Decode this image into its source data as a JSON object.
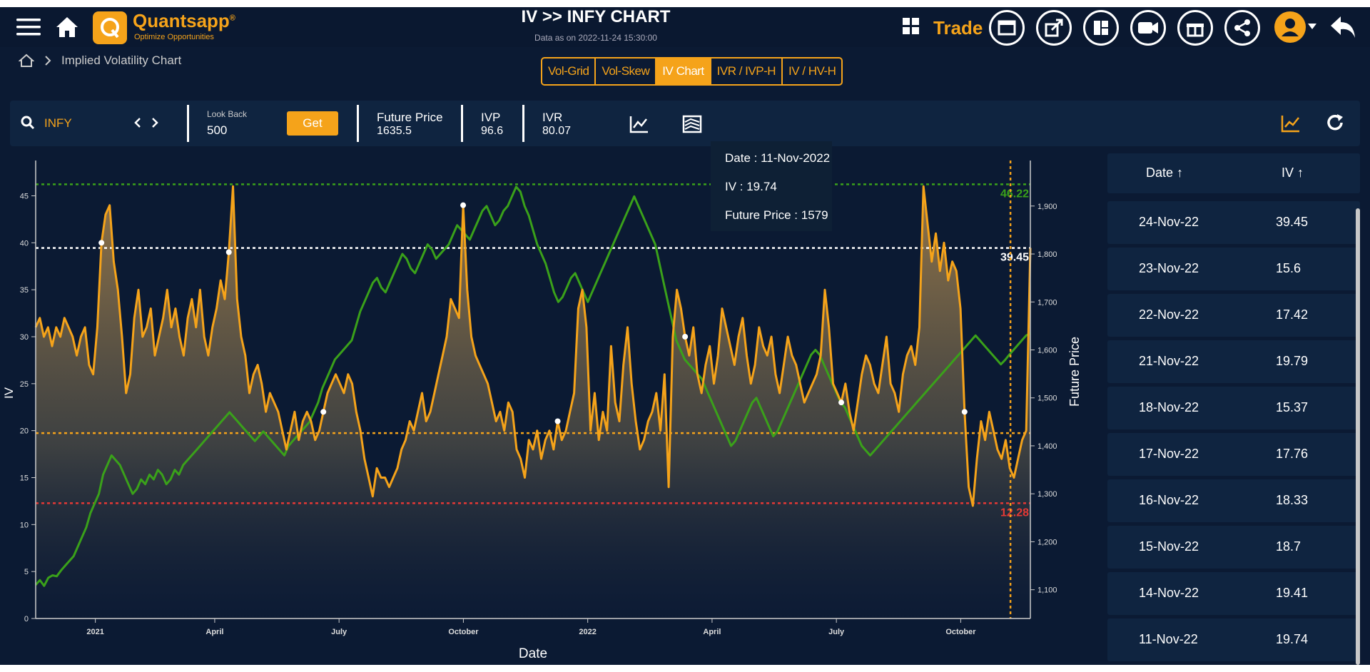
{
  "header": {
    "brand": "Quantsapp",
    "brand_sup": "®",
    "tagline": "Optimize Opportunities",
    "title": "IV >> INFY CHART",
    "as_of": "Data as on 2022-11-24 15:30:00",
    "trade_label": "Trade"
  },
  "breadcrumb": {
    "current": "Implied Volatility Chart"
  },
  "tabs": [
    {
      "label": "Vol-Grid",
      "active": false
    },
    {
      "label": "Vol-Skew",
      "active": false
    },
    {
      "label": "IV Chart",
      "active": true
    },
    {
      "label": "IVR / IVP-H",
      "active": false
    },
    {
      "label": "IV / HV-H",
      "active": false
    }
  ],
  "toolbar": {
    "symbol": "INFY",
    "lookback_label": "Look Back",
    "lookback_value": "500",
    "get_label": "Get",
    "future_label": "Future Price",
    "future_value": "1635.5",
    "ivp_label": "IVP",
    "ivp_value": "96.6",
    "ivr_label": "IVR",
    "ivr_value": "80.07"
  },
  "tooltip": {
    "date": "Date : 11-Nov-2022",
    "iv": "IV : 19.74",
    "future": "Future Price : 1579"
  },
  "table": {
    "col_date": "Date ↑",
    "col_iv": "IV ↑",
    "rows": [
      {
        "date": "24-Nov-22",
        "iv": "39.45"
      },
      {
        "date": "23-Nov-22",
        "iv": "15.6"
      },
      {
        "date": "22-Nov-22",
        "iv": "17.42"
      },
      {
        "date": "21-Nov-22",
        "iv": "19.79"
      },
      {
        "date": "18-Nov-22",
        "iv": "15.37"
      },
      {
        "date": "17-Nov-22",
        "iv": "17.76"
      },
      {
        "date": "16-Nov-22",
        "iv": "18.33"
      },
      {
        "date": "15-Nov-22",
        "iv": "18.7"
      },
      {
        "date": "14-Nov-22",
        "iv": "19.41"
      },
      {
        "date": "11-Nov-22",
        "iv": "19.74"
      }
    ]
  },
  "colors": {
    "iv": "#f5a31a",
    "future": "#3aa11a",
    "bg": "#0b1a33",
    "max": "#3aa11a",
    "min": "#e53935",
    "current": "#ffffff",
    "median": "#f5a31a"
  },
  "chart_data": {
    "type": "line",
    "xlabel": "Date",
    "ylabel": "IV",
    "y2label": "Future Price",
    "x_ticks": [
      "2021",
      "April",
      "July",
      "October",
      "2022",
      "April",
      "July",
      "October"
    ],
    "x_tick_pos": [
      0.06,
      0.18,
      0.305,
      0.43,
      0.555,
      0.68,
      0.805,
      0.93
    ],
    "ylim": [
      0,
      48
    ],
    "y_ticks": [
      0,
      5,
      10,
      15,
      20,
      25,
      30,
      35,
      40,
      45
    ],
    "y2lim": [
      1040,
      1980
    ],
    "y2_ticks": [
      "1,100",
      "1,200",
      "1,300",
      "1,400",
      "1,500",
      "1,600",
      "1,700",
      "1,800",
      "1,900"
    ],
    "y2_tick_vals": [
      1100,
      1200,
      1300,
      1400,
      1500,
      1600,
      1700,
      1800,
      1900
    ],
    "hlines": [
      {
        "name": "max",
        "value": 46.22,
        "label": "46.22",
        "color": "#3aa11a"
      },
      {
        "name": "current",
        "value": 39.45,
        "label": "39.45",
        "color": "#ffffff"
      },
      {
        "name": "median",
        "value": 19.74,
        "label": "",
        "color": "#f5a31a"
      },
      {
        "name": "min",
        "value": 12.28,
        "label": "12.28",
        "color": "#e53935"
      }
    ],
    "cursor_x": 0.98,
    "series": [
      {
        "name": "IV",
        "axis": "left",
        "values": [
          31,
          32,
          30,
          31,
          29,
          31,
          30,
          32,
          31,
          30,
          28,
          30,
          31,
          27,
          26,
          31,
          40,
          43,
          44,
          38,
          35,
          30,
          24,
          26,
          32,
          35,
          30,
          31,
          33,
          28,
          30,
          32,
          35,
          31,
          33,
          30,
          28,
          32,
          34,
          31,
          35,
          30,
          28,
          31,
          33,
          36,
          34,
          39,
          46,
          34,
          30,
          28,
          24,
          26,
          27,
          25,
          22,
          24,
          23,
          22,
          20,
          18,
          20,
          22,
          19,
          21,
          22,
          21,
          19,
          20,
          22,
          24,
          25,
          26,
          25,
          24,
          26,
          25,
          22,
          20,
          17,
          15,
          13,
          16,
          15,
          15,
          14,
          15,
          16,
          18,
          19,
          21,
          20,
          22,
          24,
          21,
          22,
          24,
          26,
          28,
          30,
          34,
          33,
          32,
          44,
          35,
          30,
          28,
          27,
          26,
          25,
          23,
          21,
          22,
          20,
          23,
          22,
          18,
          17,
          15,
          19,
          18,
          20,
          17,
          19,
          20,
          18,
          21,
          19,
          20,
          22,
          24,
          33,
          35,
          31,
          20,
          24,
          19,
          22,
          20,
          29,
          23,
          21,
          27,
          31,
          25,
          21,
          18,
          19,
          21,
          22,
          24,
          20,
          26,
          14,
          30,
          35,
          33,
          30,
          28,
          31,
          26,
          24,
          27,
          29,
          25,
          28,
          33,
          31,
          29,
          27,
          30,
          32,
          28,
          25,
          27,
          31,
          29,
          28,
          30,
          26,
          24,
          27,
          30,
          28,
          27,
          25,
          23,
          24,
          25,
          26,
          28,
          35,
          31,
          25,
          24,
          23,
          25,
          22,
          20,
          23,
          26,
          28,
          27,
          25,
          24,
          27,
          30,
          25,
          24,
          22,
          26,
          28,
          29,
          27,
          31,
          46,
          42,
          38,
          41,
          37,
          40,
          36,
          38,
          37,
          33,
          22,
          14,
          12,
          17,
          21,
          19,
          22,
          20,
          18,
          17,
          19,
          16,
          15,
          17,
          19,
          20,
          39.45
        ]
      },
      {
        "name": "Future Price",
        "axis": "right",
        "values": [
          1110,
          1120,
          1108,
          1125,
          1130,
          1128,
          1140,
          1150,
          1160,
          1170,
          1190,
          1210,
          1230,
          1260,
          1280,
          1300,
          1340,
          1360,
          1380,
          1370,
          1360,
          1340,
          1320,
          1300,
          1310,
          1330,
          1320,
          1340,
          1330,
          1350,
          1340,
          1320,
          1330,
          1350,
          1340,
          1360,
          1370,
          1380,
          1390,
          1400,
          1410,
          1420,
          1430,
          1440,
          1450,
          1460,
          1470,
          1460,
          1450,
          1440,
          1430,
          1420,
          1410,
          1420,
          1430,
          1420,
          1410,
          1400,
          1390,
          1380,
          1400,
          1410,
          1420,
          1430,
          1440,
          1450,
          1470,
          1490,
          1520,
          1540,
          1560,
          1580,
          1590,
          1600,
          1610,
          1620,
          1650,
          1680,
          1700,
          1720,
          1740,
          1750,
          1730,
          1720,
          1740,
          1760,
          1780,
          1800,
          1790,
          1770,
          1760,
          1780,
          1800,
          1820,
          1810,
          1790,
          1800,
          1810,
          1820,
          1840,
          1860,
          1850,
          1840,
          1830,
          1850,
          1870,
          1890,
          1900,
          1880,
          1860,
          1870,
          1890,
          1900,
          1920,
          1940,
          1930,
          1900,
          1880,
          1850,
          1820,
          1800,
          1780,
          1750,
          1720,
          1700,
          1710,
          1730,
          1750,
          1760,
          1740,
          1720,
          1700,
          1720,
          1740,
          1760,
          1780,
          1800,
          1820,
          1840,
          1860,
          1880,
          1900,
          1920,
          1900,
          1880,
          1860,
          1840,
          1820,
          1780,
          1740,
          1700,
          1660,
          1620,
          1600,
          1580,
          1570,
          1560,
          1550,
          1540,
          1520,
          1500,
          1480,
          1460,
          1440,
          1420,
          1400,
          1410,
          1430,
          1450,
          1470,
          1490,
          1500,
          1480,
          1460,
          1440,
          1420,
          1430,
          1450,
          1470,
          1490,
          1510,
          1530,
          1550,
          1570,
          1590,
          1600,
          1590,
          1570,
          1550,
          1530,
          1510,
          1490,
          1480,
          1460,
          1440,
          1420,
          1400,
          1390,
          1380,
          1390,
          1400,
          1410,
          1420,
          1430,
          1440,
          1450,
          1460,
          1470,
          1480,
          1490,
          1500,
          1510,
          1520,
          1530,
          1540,
          1550,
          1560,
          1570,
          1580,
          1590,
          1600,
          1610,
          1620,
          1630,
          1620,
          1610,
          1600,
          1590,
          1580,
          1570,
          1579,
          1590,
          1600,
          1610,
          1620,
          1630,
          1635
        ]
      }
    ]
  }
}
